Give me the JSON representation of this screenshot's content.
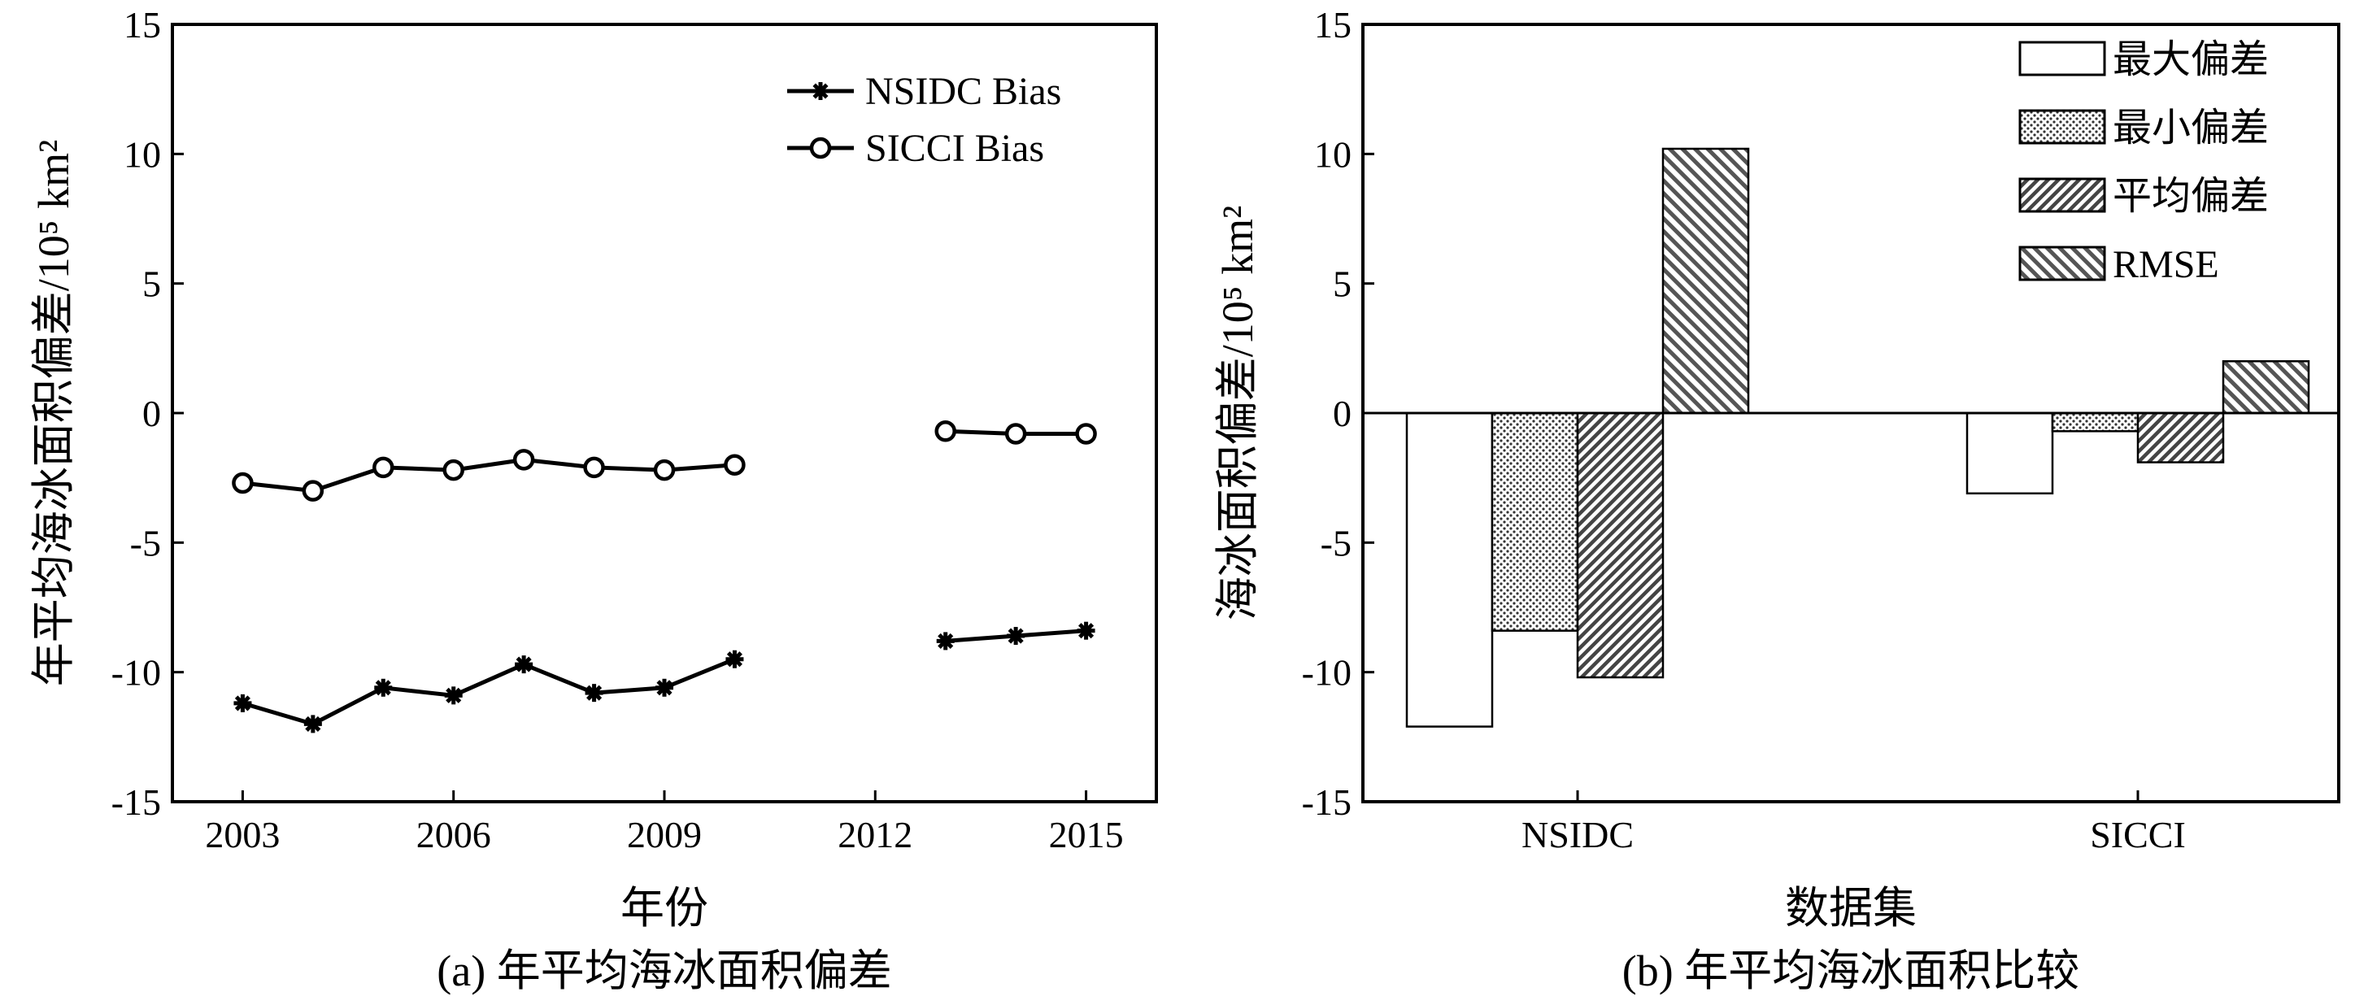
{
  "panels": {
    "a": {
      "caption": "(a) 年平均海冰面积偏差"
    },
    "b": {
      "caption": "(b) 年平均海冰面积比较"
    }
  },
  "chart_data": [
    {
      "type": "line",
      "xlabel": "年份",
      "ylabel": "年平均海冰面积偏差/10⁵ km²",
      "xlim": [
        2002,
        2016
      ],
      "ylim": [
        -15,
        15
      ],
      "xticks": [
        2003,
        2006,
        2009,
        2012,
        2015
      ],
      "yticks": [
        15,
        10,
        5,
        0,
        -5,
        -10,
        -15
      ],
      "ytick_labels": [
        "15",
        "10",
        "5",
        "0",
        "-5",
        "-10",
        "-15"
      ],
      "grid": false,
      "legend_position": "top-right",
      "series": [
        {
          "name": "NSIDC Bias",
          "marker": "star",
          "segments": [
            {
              "x": [
                2003,
                2004,
                2005,
                2006,
                2007,
                2008,
                2009,
                2010
              ],
              "y": [
                -11.2,
                -12.0,
                -10.6,
                -10.9,
                -9.7,
                -10.8,
                -10.6,
                -9.5
              ]
            },
            {
              "x": [
                2013,
                2014,
                2015
              ],
              "y": [
                -8.8,
                -8.6,
                -8.4
              ]
            }
          ]
        },
        {
          "name": "SICCI Bias",
          "marker": "circle",
          "segments": [
            {
              "x": [
                2003,
                2004,
                2005,
                2006,
                2007,
                2008,
                2009,
                2010
              ],
              "y": [
                -2.7,
                -3.0,
                -2.1,
                -2.2,
                -1.8,
                -2.1,
                -2.2,
                -2.0
              ]
            },
            {
              "x": [
                2013,
                2014,
                2015
              ],
              "y": [
                -0.7,
                -0.8,
                -0.8
              ]
            }
          ]
        }
      ]
    },
    {
      "type": "bar",
      "xlabel": "数据集",
      "ylabel": "海冰面积偏差/10⁵ km²",
      "ylim": [
        -15,
        15
      ],
      "yticks": [
        15,
        10,
        5,
        0,
        -5,
        -10,
        -15
      ],
      "ytick_labels": [
        "15",
        "10",
        "5",
        "0",
        "-5",
        "-10",
        "-15"
      ],
      "grid": false,
      "legend_position": "top-right",
      "categories": [
        "NSIDC",
        "SICCI"
      ],
      "series": [
        {
          "name": "最大偏差",
          "pattern": "white",
          "values": [
            -12.1,
            -3.1
          ]
        },
        {
          "name": "最小偏差",
          "pattern": "dots",
          "values": [
            -8.4,
            -0.7
          ]
        },
        {
          "name": "平均偏差",
          "pattern": "hatch-dense",
          "values": [
            -10.2,
            -1.9
          ]
        },
        {
          "name": "RMSE",
          "pattern": "hatch-sparse",
          "values": [
            10.2,
            2.0
          ]
        }
      ]
    }
  ]
}
